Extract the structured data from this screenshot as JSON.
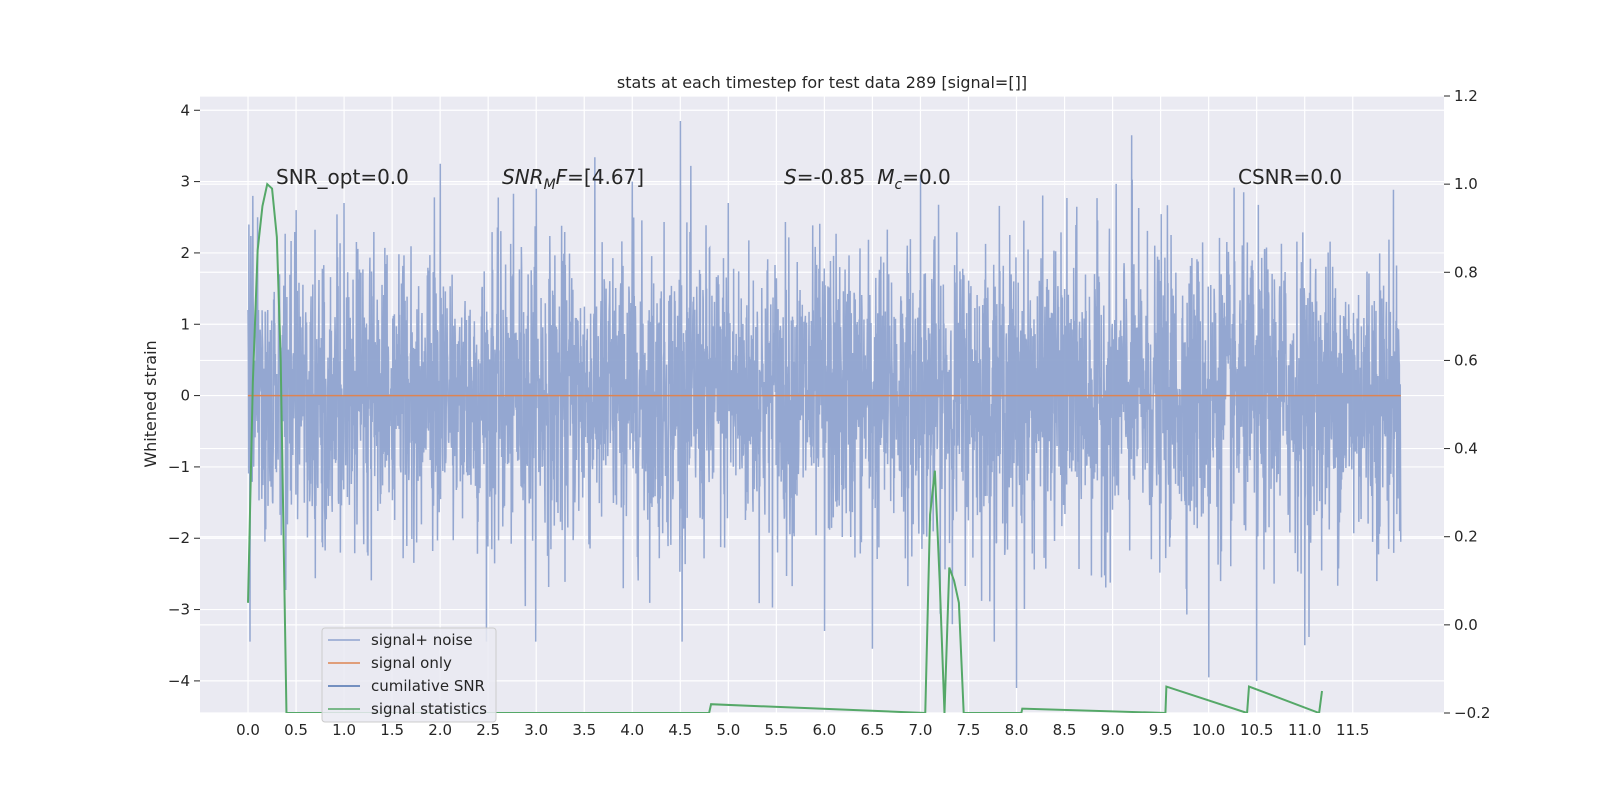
{
  "chart_data": {
    "type": "line",
    "title": "stats at each timestep for test data 289 [signal=[]]",
    "ylabel": "Whitened strain",
    "xlim": [
      -0.5,
      12.45
    ],
    "ylim": [
      -4.45,
      4.2
    ],
    "y2lim": [
      -0.2,
      1.2
    ],
    "x_ticks": [
      "0.0",
      "0.5",
      "1.0",
      "1.5",
      "2.0",
      "2.5",
      "3.0",
      "3.5",
      "4.0",
      "4.5",
      "5.0",
      "5.5",
      "6.0",
      "6.5",
      "7.0",
      "7.5",
      "8.0",
      "8.5",
      "9.0",
      "9.5",
      "10.0",
      "10.5",
      "11.0",
      "11.5"
    ],
    "y_ticks": [
      "4",
      "3",
      "2",
      "1",
      "0",
      "−1",
      "−2",
      "−3",
      "−4"
    ],
    "y2_ticks": [
      "1.2",
      "1.0",
      "0.8",
      "0.6",
      "0.4",
      "0.2",
      "0.0",
      "−0.2"
    ],
    "grid": true,
    "legend_position": "bottom-left",
    "annotations": {
      "snr_opt": "SNR_opt=0.0",
      "snr_mf_prefix": "SNR",
      "snr_mf_sub": "M",
      "snr_mf_suffix": "F=[4.67]",
      "s_prefix": "S",
      "s_value": "=-0.85",
      "mc_prefix": "M",
      "mc_sub": "c",
      "mc_value": "=0.0",
      "csnr": "CSNR=0.0"
    },
    "series": [
      {
        "name": "signal+ noise",
        "color": "#8fa3cf",
        "x_range": [
          0.0,
          12.0
        ],
        "approx_range": [
          -3.45,
          3.85
        ],
        "note_values": [
          [
            0.0,
            1.2
          ],
          [
            0.02,
            -3.45
          ],
          [
            0.05,
            2.8
          ],
          [
            0.1,
            2.5
          ],
          [
            0.5,
            2.6
          ],
          [
            1.0,
            2.7
          ],
          [
            2.0,
            3.25
          ],
          [
            3.0,
            2.9
          ],
          [
            4.0,
            3.0
          ],
          [
            4.5,
            3.85
          ],
          [
            5.0,
            2.7
          ],
          [
            6.0,
            -3.3
          ],
          [
            6.5,
            -3.55
          ],
          [
            7.0,
            3.1
          ],
          [
            8.0,
            -4.1
          ],
          [
            9.2,
            3.65
          ],
          [
            10.0,
            -3.95
          ],
          [
            10.5,
            -4.0
          ],
          [
            11.0,
            -3.5
          ],
          [
            12.0,
            -2.05
          ]
        ]
      },
      {
        "name": "signal only",
        "color": "#dd8452",
        "x": [
          0.0,
          12.0
        ],
        "y": [
          0.0,
          0.0
        ]
      },
      {
        "name": "cumilative SNR",
        "color": "#4c72b0",
        "x": [],
        "y": []
      },
      {
        "name": "signal statistics",
        "color": "#55a868",
        "axis": "right",
        "x": [
          0.0,
          0.05,
          0.1,
          0.15,
          0.2,
          0.25,
          0.3,
          0.34,
          0.4,
          4.8,
          4.82,
          7.05,
          7.1,
          7.15,
          7.2,
          7.25,
          7.3,
          7.35,
          7.4,
          7.45,
          8.05,
          8.06,
          9.55,
          9.56,
          10.4,
          10.42,
          11.15,
          11.18
        ],
        "y": [
          0.05,
          0.55,
          0.85,
          0.95,
          1.0,
          0.99,
          0.88,
          0.6,
          -0.2,
          -0.2,
          -0.18,
          -0.2,
          0.25,
          0.35,
          0.1,
          -0.2,
          0.13,
          0.1,
          0.05,
          -0.2,
          -0.2,
          -0.19,
          -0.2,
          -0.14,
          -0.2,
          -0.14,
          -0.2,
          -0.15
        ]
      }
    ]
  }
}
